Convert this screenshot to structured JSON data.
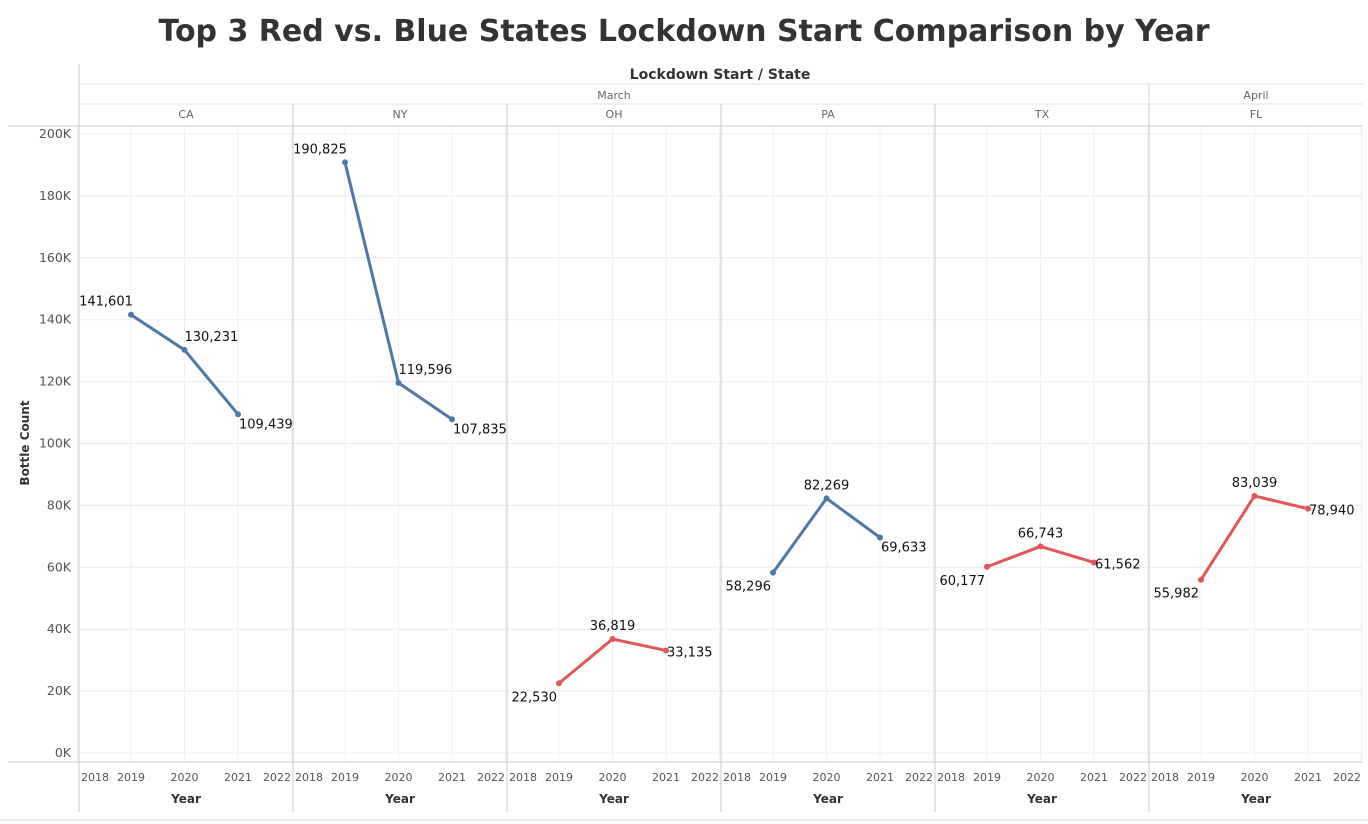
{
  "chart_data": {
    "type": "line",
    "title": "Top 3 Red vs. Blue States Lockdown Start Comparison by Year",
    "header_label": "Lockdown Start  /  State",
    "ylabel": "Bottle Count",
    "xlabel": "Year",
    "ylim": [
      0,
      200000
    ],
    "yticks": [
      "0K",
      "20K",
      "40K",
      "60K",
      "80K",
      "100K",
      "120K",
      "140K",
      "160K",
      "180K",
      "200K"
    ],
    "xticks": [
      2018,
      2019,
      2020,
      2021,
      2022
    ],
    "grid": true,
    "months": [
      {
        "label": "March",
        "panels": [
          0,
          1,
          2,
          3,
          4
        ]
      },
      {
        "label": "April",
        "panels": [
          5
        ]
      }
    ],
    "colors": {
      "blue": "#4e79a7",
      "red": "#e15759"
    },
    "panels": [
      {
        "state": "CA",
        "color": "blue",
        "x": [
          2019,
          2020,
          2021
        ],
        "y": [
          141601,
          130231,
          109439
        ],
        "labels": [
          "141,601",
          "130,231",
          "109,439"
        ]
      },
      {
        "state": "NY",
        "color": "blue",
        "x": [
          2019,
          2020,
          2021
        ],
        "y": [
          190825,
          119596,
          107835
        ],
        "labels": [
          "190,825",
          "119,596",
          "107,835"
        ]
      },
      {
        "state": "OH",
        "color": "red",
        "x": [
          2019,
          2020,
          2021
        ],
        "y": [
          22530,
          36819,
          33135
        ],
        "labels": [
          "22,530",
          "36,819",
          "33,135"
        ]
      },
      {
        "state": "PA",
        "color": "blue",
        "x": [
          2019,
          2020,
          2021
        ],
        "y": [
          58296,
          82269,
          69633
        ],
        "labels": [
          "58,296",
          "82,269",
          "69,633"
        ]
      },
      {
        "state": "TX",
        "color": "red",
        "x": [
          2019,
          2020,
          2021
        ],
        "y": [
          60177,
          66743,
          61562
        ],
        "labels": [
          "60,177",
          "66,743",
          "61,562"
        ]
      },
      {
        "state": "FL",
        "color": "red",
        "x": [
          2019,
          2020,
          2021
        ],
        "y": [
          55982,
          83039,
          78940
        ],
        "labels": [
          "55,982",
          "83,039",
          "78,940"
        ]
      }
    ]
  }
}
